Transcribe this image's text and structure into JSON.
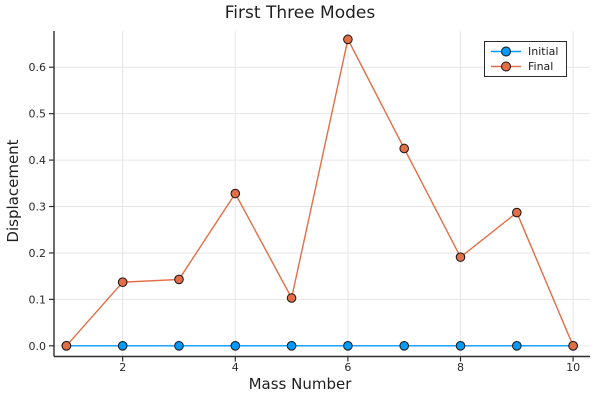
{
  "figure": {
    "title": "First Three Modes",
    "xlabel": "Mass Number",
    "ylabel": "Displacement"
  },
  "chart_data": {
    "type": "line",
    "title": "First Three Modes",
    "xlabel": "Mass Number",
    "ylabel": "Displacement",
    "x": [
      1,
      2,
      3,
      4,
      5,
      6,
      7,
      8,
      9,
      10
    ],
    "series": [
      {
        "name": "Initial",
        "color": "#009AFA",
        "values": [
          0.0,
          0.0,
          0.0,
          0.0,
          0.0,
          0.0,
          0.0,
          0.0,
          0.0,
          0.0
        ]
      },
      {
        "name": "Final",
        "color": "#E26E47",
        "values": [
          0.0,
          0.137,
          0.143,
          0.328,
          0.103,
          0.66,
          0.425,
          0.191,
          0.287,
          0.0
        ]
      }
    ],
    "xtick_values": [
      2,
      4,
      6,
      8,
      10
    ],
    "xtick_labels": [
      "2",
      "4",
      "6",
      "8",
      "10"
    ],
    "ytick_values": [
      0.0,
      0.1,
      0.2,
      0.3,
      0.4,
      0.5,
      0.6
    ],
    "ytick_labels": [
      "0.0",
      "0.1",
      "0.2",
      "0.3",
      "0.4",
      "0.5",
      "0.6"
    ],
    "xlim": [
      0.78,
      10.3
    ],
    "ylim": [
      -0.023,
      0.678
    ],
    "grid": true,
    "legend_position": "top-right",
    "colors": {
      "grid": "#e6e6e6",
      "spine": "#2e2e2e",
      "marker_stroke": "#141414",
      "tick_text": "#2a2a2a"
    }
  }
}
